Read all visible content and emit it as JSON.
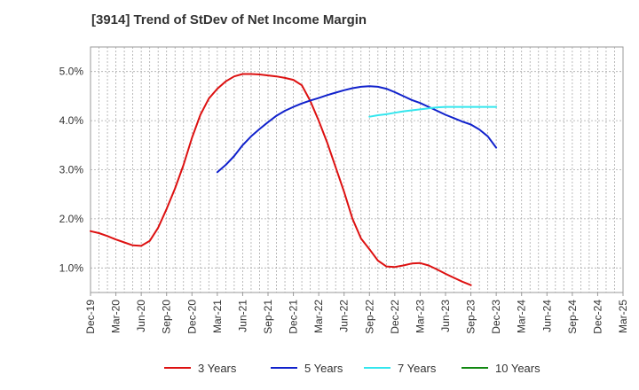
{
  "chart_data": {
    "type": "line",
    "title": "[3914]  Trend of StDev of Net Income Margin",
    "xlabel": "",
    "ylabel": "",
    "x_ticks": [
      "Dec-19",
      "Mar-20",
      "Jun-20",
      "Sep-20",
      "Dec-20",
      "Mar-21",
      "Jun-21",
      "Sep-21",
      "Dec-21",
      "Mar-22",
      "Jun-22",
      "Sep-22",
      "Dec-22",
      "Mar-23",
      "Jun-23",
      "Sep-23",
      "Dec-23",
      "Mar-24",
      "Jun-24",
      "Sep-24",
      "Dec-24",
      "Mar-25"
    ],
    "y_ticks": [
      "1.0%",
      "2.0%",
      "3.0%",
      "4.0%",
      "5.0%"
    ],
    "ylim": [
      0.5,
      5.5
    ],
    "grid": true,
    "legend_position": "bottom",
    "series": [
      {
        "name": "3 Years",
        "color": "#dd1111",
        "points": [
          [
            0,
            1.75
          ],
          [
            1,
            1.71
          ],
          [
            2,
            1.65
          ],
          [
            3,
            1.58
          ],
          [
            4,
            1.52
          ],
          [
            5,
            1.46
          ],
          [
            6,
            1.45
          ],
          [
            7,
            1.55
          ],
          [
            8,
            1.82
          ],
          [
            9,
            2.2
          ],
          [
            10,
            2.62
          ],
          [
            11,
            3.1
          ],
          [
            12,
            3.65
          ],
          [
            13,
            4.12
          ],
          [
            14,
            4.45
          ],
          [
            15,
            4.65
          ],
          [
            16,
            4.8
          ],
          [
            17,
            4.9
          ],
          [
            18,
            4.95
          ],
          [
            19,
            4.95
          ],
          [
            20,
            4.94
          ],
          [
            21,
            4.92
          ],
          [
            22,
            4.9
          ],
          [
            23,
            4.87
          ],
          [
            24,
            4.83
          ],
          [
            25,
            4.72
          ],
          [
            26,
            4.4
          ],
          [
            27,
            4.0
          ],
          [
            28,
            3.55
          ],
          [
            29,
            3.05
          ],
          [
            30,
            2.55
          ],
          [
            31,
            2.0
          ],
          [
            32,
            1.6
          ],
          [
            33,
            1.38
          ],
          [
            34,
            1.15
          ],
          [
            35,
            1.03
          ],
          [
            36,
            1.02
          ],
          [
            37,
            1.05
          ],
          [
            38,
            1.09
          ],
          [
            39,
            1.1
          ],
          [
            40,
            1.05
          ],
          [
            41,
            0.97
          ],
          [
            42,
            0.88
          ],
          [
            43,
            0.8
          ],
          [
            44,
            0.72
          ],
          [
            45,
            0.65
          ]
        ]
      },
      {
        "name": "5 Years",
        "color": "#1122cc",
        "points": [
          [
            15,
            2.95
          ],
          [
            16,
            3.1
          ],
          [
            17,
            3.28
          ],
          [
            18,
            3.5
          ],
          [
            19,
            3.68
          ],
          [
            20,
            3.83
          ],
          [
            21,
            3.97
          ],
          [
            22,
            4.1
          ],
          [
            23,
            4.2
          ],
          [
            24,
            4.28
          ],
          [
            25,
            4.35
          ],
          [
            26,
            4.41
          ],
          [
            27,
            4.46
          ],
          [
            28,
            4.52
          ],
          [
            29,
            4.57
          ],
          [
            30,
            4.62
          ],
          [
            31,
            4.66
          ],
          [
            32,
            4.69
          ],
          [
            33,
            4.7
          ],
          [
            34,
            4.69
          ],
          [
            35,
            4.65
          ],
          [
            36,
            4.58
          ],
          [
            37,
            4.5
          ],
          [
            38,
            4.42
          ],
          [
            39,
            4.36
          ],
          [
            40,
            4.28
          ],
          [
            41,
            4.2
          ],
          [
            42,
            4.12
          ],
          [
            43,
            4.05
          ],
          [
            44,
            3.98
          ],
          [
            45,
            3.92
          ],
          [
            46,
            3.82
          ],
          [
            47,
            3.68
          ],
          [
            48,
            3.45
          ]
        ]
      },
      {
        "name": "7 Years",
        "color": "#33e6ee",
        "points": [
          [
            33,
            4.08
          ],
          [
            34,
            4.11
          ],
          [
            35,
            4.13
          ],
          [
            36,
            4.16
          ],
          [
            37,
            4.19
          ],
          [
            38,
            4.21
          ],
          [
            39,
            4.23
          ],
          [
            40,
            4.25
          ],
          [
            41,
            4.27
          ],
          [
            42,
            4.28
          ],
          [
            43,
            4.28
          ],
          [
            44,
            4.28
          ],
          [
            45,
            4.28
          ],
          [
            46,
            4.28
          ],
          [
            47,
            4.28
          ],
          [
            48,
            4.28
          ]
        ]
      },
      {
        "name": "10 Years",
        "color": "#118811",
        "points": []
      }
    ]
  }
}
